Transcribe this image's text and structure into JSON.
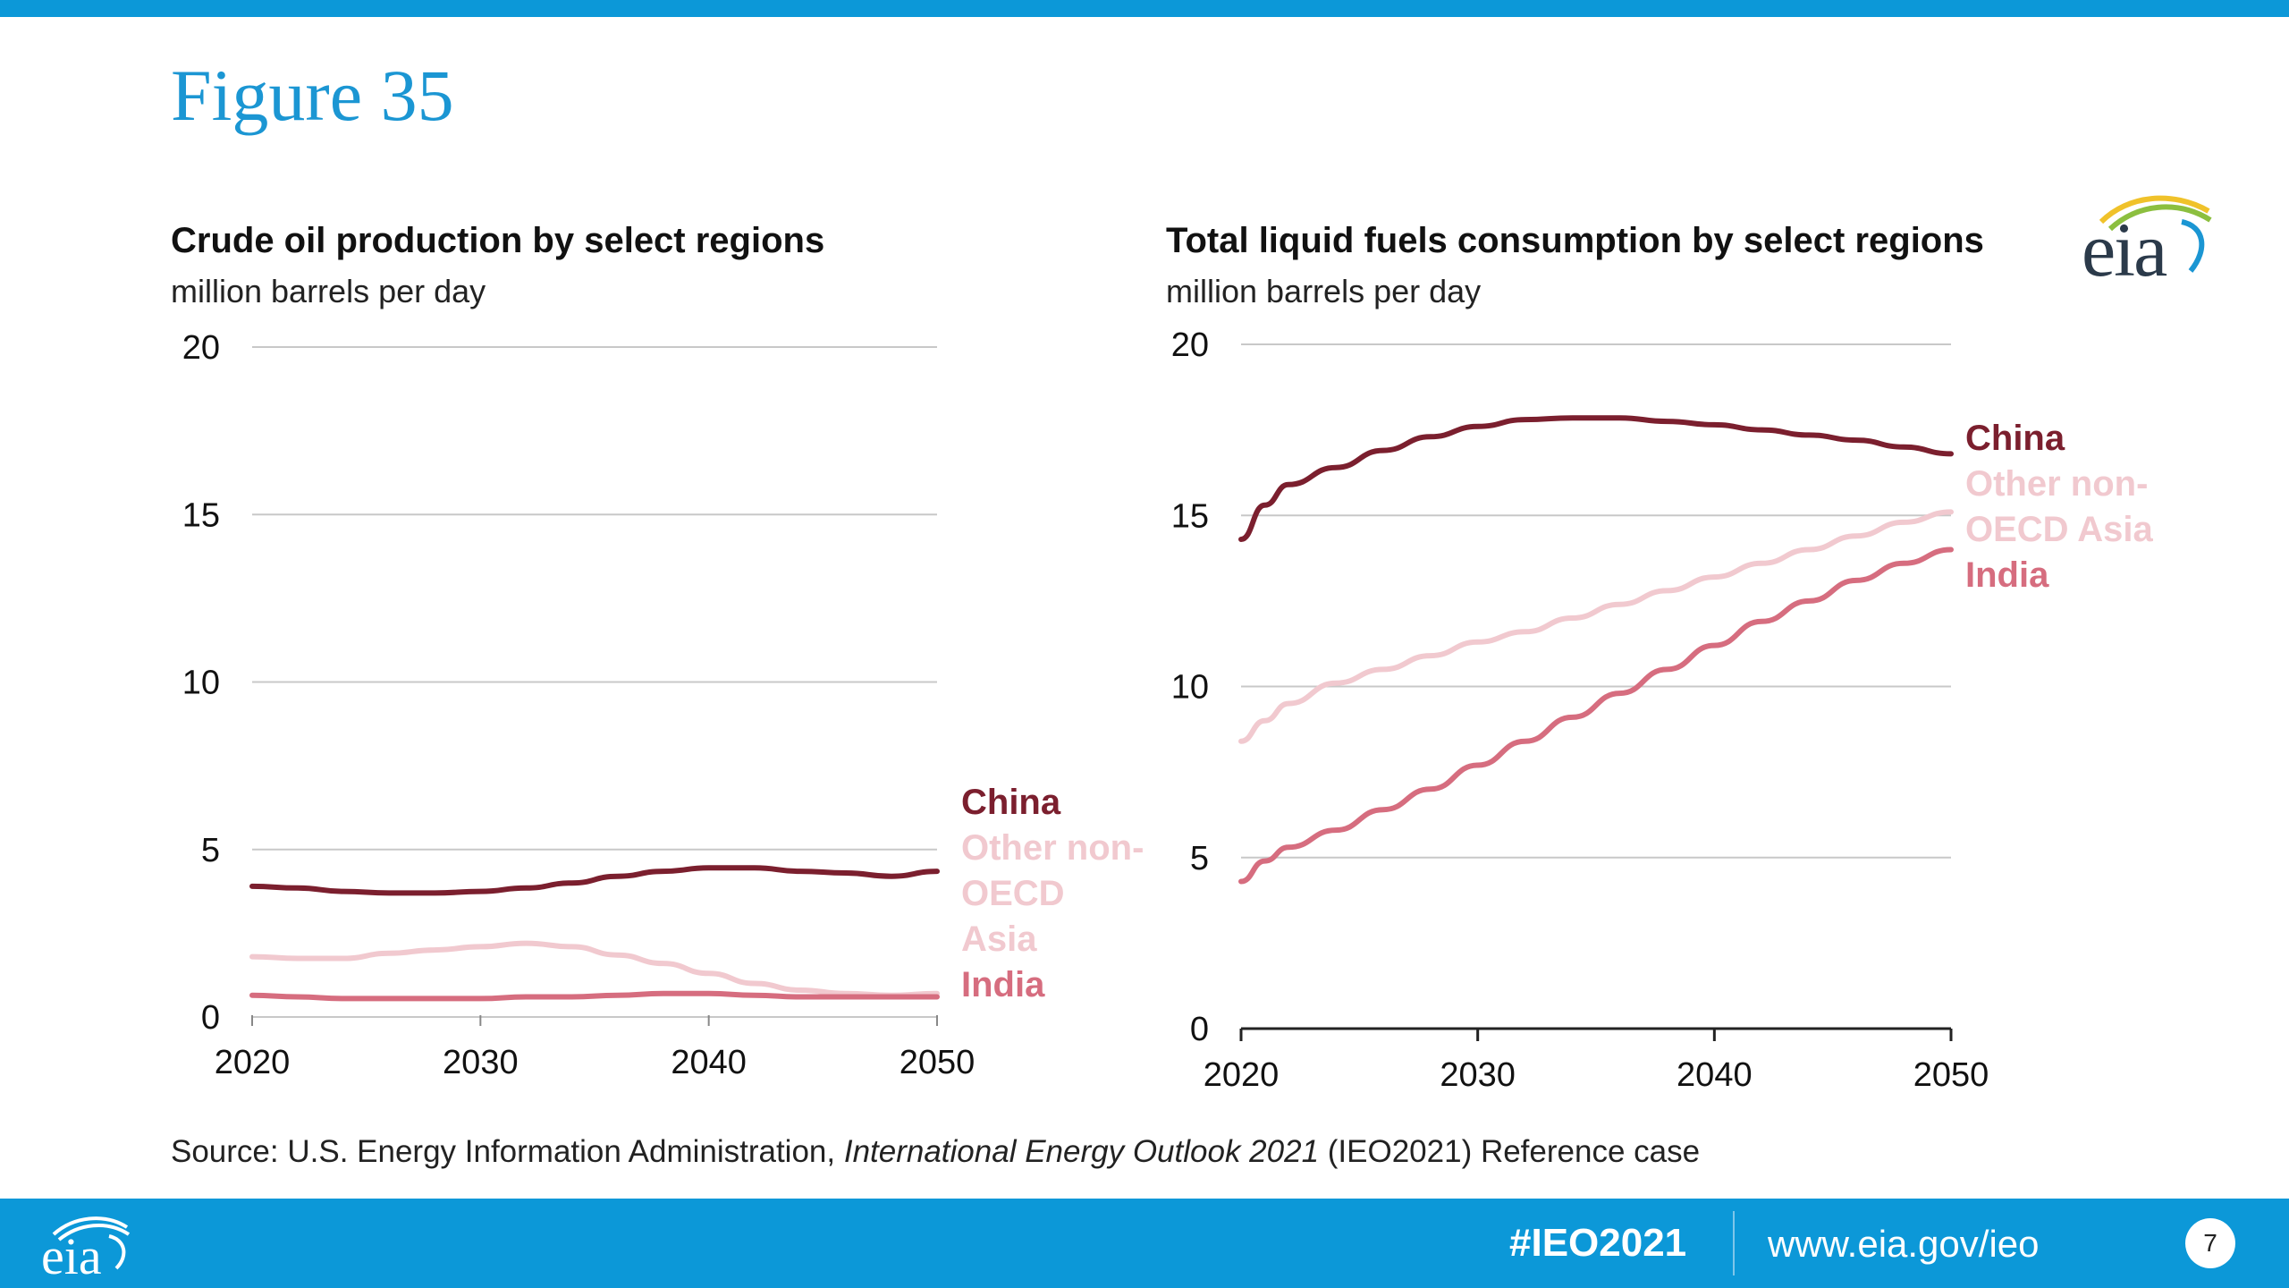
{
  "slide": {
    "figure_title": "Figure 35",
    "source_prefix": "Source:  U.S. Energy Information Administration, ",
    "source_italic": "International Energy Outlook 2021",
    "source_suffix": " (IEO2021) Reference case",
    "logo_text": "eia",
    "hashtag": "#IEO2021",
    "website": "www.eia.gov/ieo",
    "page_number": "7"
  },
  "colors": {
    "brand_blue": "#0c98d8",
    "title_blue": "#1b96d3",
    "china": "#7b1f2e",
    "other_non_oecd_asia": "#f1c9cf",
    "india": "#d66d7f",
    "grid": "#c8c8c8"
  },
  "chart_data": [
    {
      "type": "line",
      "title": "Crude oil production by select regions",
      "subtitle": "million barrels per day",
      "xlabel": "",
      "ylabel": "",
      "xlim": [
        2020,
        2050
      ],
      "ylim": [
        0,
        20
      ],
      "x_ticks": [
        2020,
        2030,
        2040,
        2050
      ],
      "y_ticks": [
        0,
        5,
        10,
        15,
        20
      ],
      "grid": true,
      "legend": "direct labels at right end",
      "x": [
        2020,
        2022,
        2024,
        2026,
        2028,
        2030,
        2032,
        2034,
        2036,
        2038,
        2040,
        2042,
        2044,
        2046,
        2048,
        2050
      ],
      "series": [
        {
          "name": "China",
          "color_key": "china",
          "label_lines": [
            "China"
          ],
          "values": [
            3.9,
            3.85,
            3.75,
            3.7,
            3.7,
            3.75,
            3.85,
            4.0,
            4.2,
            4.35,
            4.45,
            4.45,
            4.35,
            4.3,
            4.2,
            4.35
          ]
        },
        {
          "name": "Other non-OECD Asia",
          "color_key": "other_non_oecd_asia",
          "label_lines": [
            "Other non-",
            "OECD",
            "Asia"
          ],
          "values": [
            1.8,
            1.75,
            1.75,
            1.9,
            2.0,
            2.1,
            2.2,
            2.1,
            1.85,
            1.6,
            1.3,
            1.0,
            0.8,
            0.7,
            0.65,
            0.7
          ]
        },
        {
          "name": "India",
          "color_key": "india",
          "label_lines": [
            "India"
          ],
          "values": [
            0.65,
            0.6,
            0.55,
            0.55,
            0.55,
            0.55,
            0.6,
            0.6,
            0.65,
            0.7,
            0.7,
            0.65,
            0.6,
            0.6,
            0.6,
            0.6
          ]
        }
      ]
    },
    {
      "type": "line",
      "title": "Total liquid fuels consumption by select regions",
      "subtitle": "million barrels per day",
      "xlabel": "",
      "ylabel": "",
      "xlim": [
        2020,
        2050
      ],
      "ylim": [
        0,
        20
      ],
      "x_ticks": [
        2020,
        2030,
        2040,
        2050
      ],
      "y_ticks": [
        0,
        5,
        10,
        15,
        20
      ],
      "grid": true,
      "legend": "direct labels at right end",
      "x": [
        2020,
        2021,
        2022,
        2024,
        2026,
        2028,
        2030,
        2032,
        2034,
        2036,
        2038,
        2040,
        2042,
        2044,
        2046,
        2048,
        2050
      ],
      "series": [
        {
          "name": "China",
          "color_key": "china",
          "label_lines": [
            "China"
          ],
          "values": [
            14.3,
            15.3,
            15.9,
            16.4,
            16.9,
            17.3,
            17.6,
            17.8,
            17.85,
            17.85,
            17.75,
            17.65,
            17.5,
            17.35,
            17.2,
            17.0,
            16.8
          ]
        },
        {
          "name": "Other non-OECD Asia",
          "color_key": "other_non_oecd_asia",
          "label_lines": [
            "Other non-",
            "OECD Asia"
          ],
          "values": [
            8.4,
            9.0,
            9.5,
            10.1,
            10.5,
            10.9,
            11.3,
            11.6,
            12.0,
            12.4,
            12.8,
            13.2,
            13.6,
            14.0,
            14.4,
            14.8,
            15.1
          ]
        },
        {
          "name": "India",
          "color_key": "india",
          "label_lines": [
            "India"
          ],
          "values": [
            4.3,
            4.9,
            5.3,
            5.8,
            6.4,
            7.0,
            7.7,
            8.4,
            9.1,
            9.8,
            10.5,
            11.2,
            11.9,
            12.5,
            13.1,
            13.6,
            14.0
          ]
        }
      ]
    }
  ]
}
